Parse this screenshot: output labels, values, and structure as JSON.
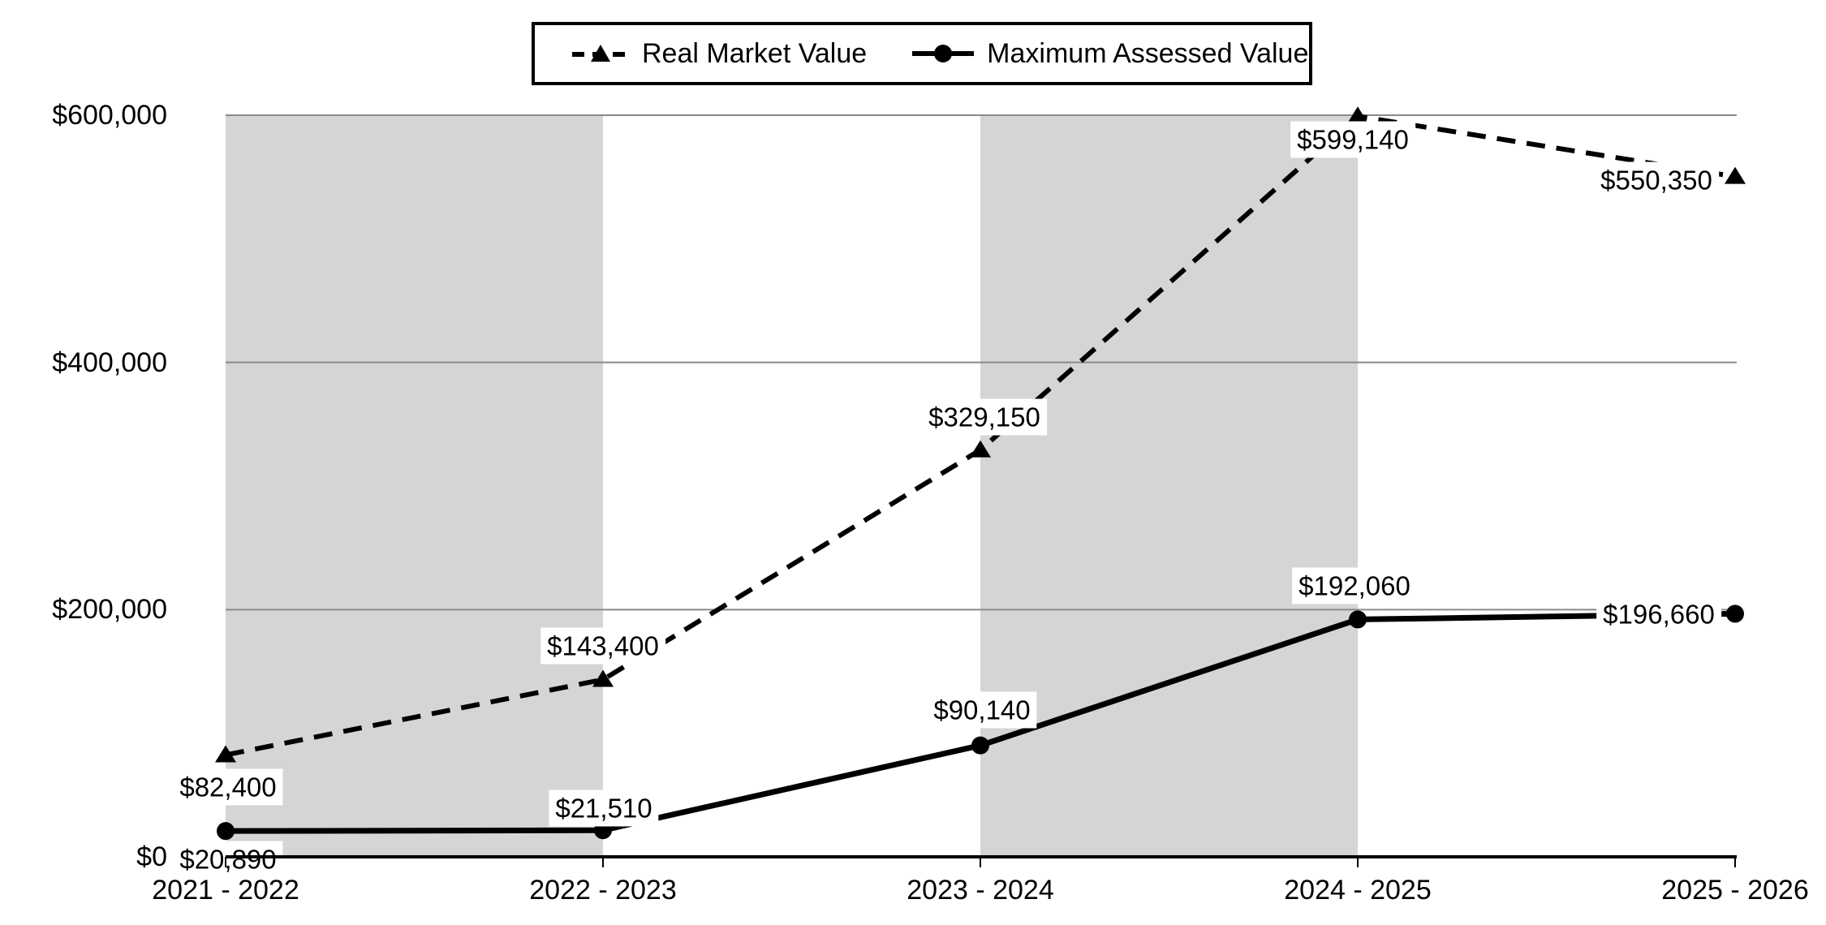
{
  "chart_data": {
    "type": "line",
    "title": "",
    "categories": [
      "2021 - 2022",
      "2022 - 2023",
      "2023 - 2024",
      "2024 - 2025",
      "2025 - 2026"
    ],
    "series": [
      {
        "name": "Real Market Value",
        "marker": "triangle",
        "line_style": "dashed",
        "values": [
          82400,
          143400,
          329150,
          599140,
          550350
        ],
        "labels": [
          "$82,400",
          "$143,400",
          "$329,150",
          "$599,140",
          "$550,350"
        ]
      },
      {
        "name": "Maximum Assessed Value",
        "marker": "circle",
        "line_style": "solid",
        "values": [
          20890,
          21510,
          90140,
          192060,
          196660
        ],
        "labels": [
          "$20,890",
          "$21,510",
          "$90,140",
          "$192,060",
          "$196,660"
        ]
      }
    ],
    "y_ticks": [
      {
        "value": 0,
        "label": "$0"
      },
      {
        "value": 200000,
        "label": "$200,000"
      },
      {
        "value": 400000,
        "label": "$400,000"
      },
      {
        "value": 600000,
        "label": "$600,000"
      }
    ],
    "ylim": [
      0,
      600000
    ],
    "grid": true,
    "legend_position": "top",
    "shaded_band_category_spans": [
      [
        0,
        1
      ],
      [
        2,
        3
      ]
    ],
    "colors": {
      "series": "#000000",
      "band": "#d5d5d5",
      "gridline": "#8a8a8a",
      "axis": "#000000",
      "label_background": "#ffffff",
      "background": "#ffffff"
    }
  }
}
